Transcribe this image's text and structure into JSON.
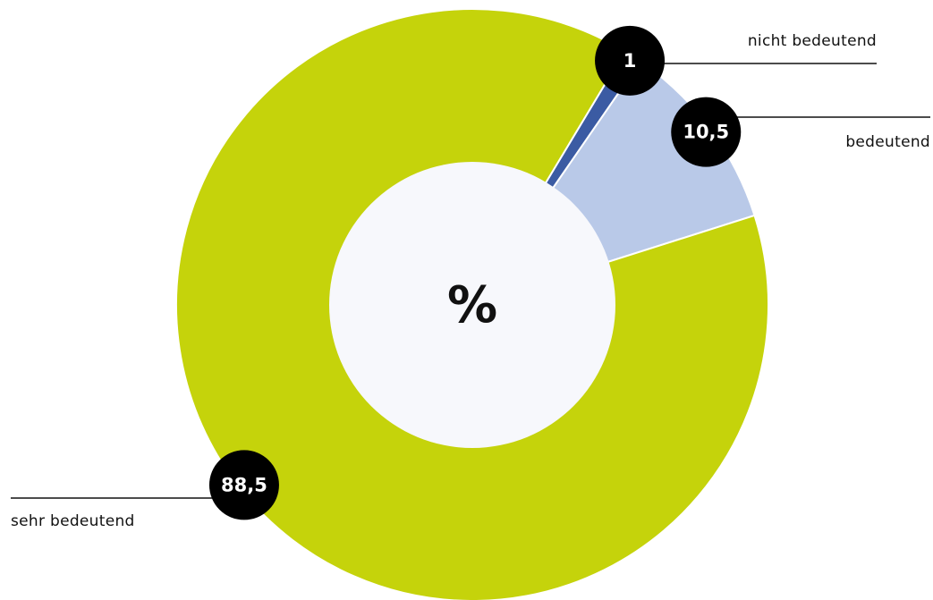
{
  "chart_data": {
    "type": "pie",
    "center_label": "%",
    "categories": [
      "nicht bedeutend",
      "bedeutend",
      "sehr bedeutend"
    ],
    "values": [
      1,
      10.5,
      88.5
    ],
    "value_labels": [
      "1",
      "10,5",
      "88,5"
    ],
    "colors": [
      "#3b5ba3",
      "#b9c9e8",
      "#c5d30b"
    ]
  }
}
